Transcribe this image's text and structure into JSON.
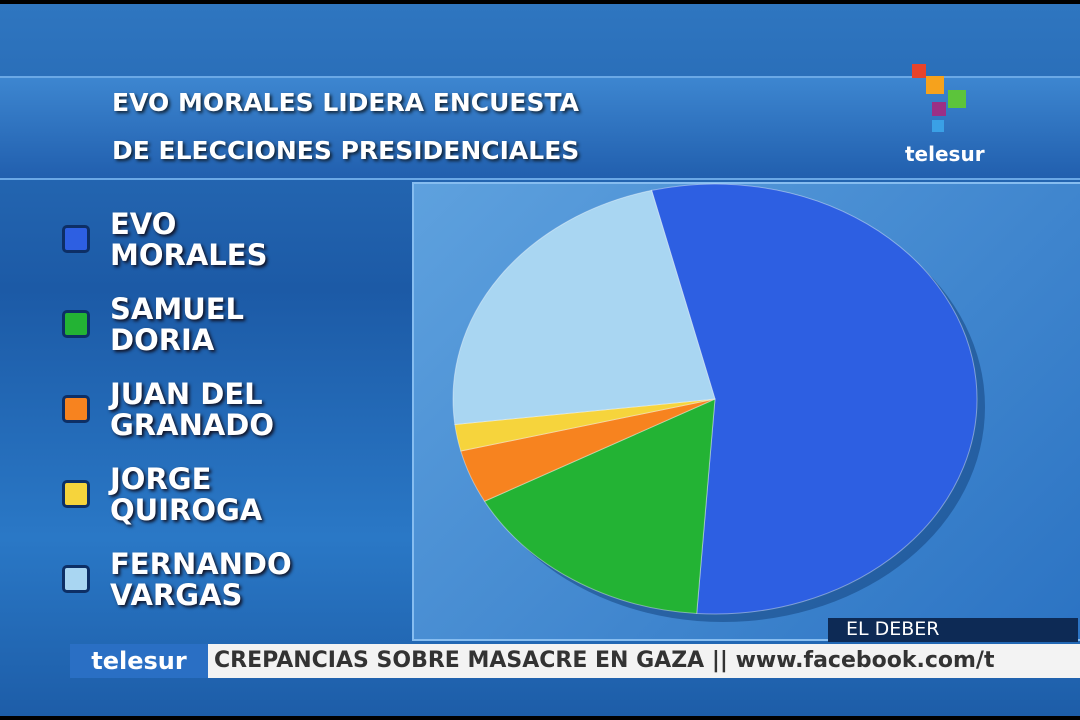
{
  "chart_data": {
    "type": "pie",
    "title_lines": [
      "EVO MORALES LIDERA ENCUESTA",
      "DE ELECCIONES PRESIDENCIALES"
    ],
    "categories": [
      "EVO MORALES",
      "SAMUEL DORIA",
      "JUAN DEL GRANADO",
      "JORGE QUIROGA",
      "FERNANDO VARGAS"
    ],
    "values": [
      55,
      16,
      4,
      2,
      23
    ],
    "colors": [
      "#2d5fe2",
      "#23b334",
      "#f7831f",
      "#f6d43c",
      "#a9d6f2"
    ],
    "source": "EL DEBER"
  },
  "branding": {
    "logo": "telesur",
    "ticker_brand": "telesur",
    "ticker_text": "CREPANCIAS SOBRE MASACRE EN GAZA || www.facebook.com/t"
  }
}
